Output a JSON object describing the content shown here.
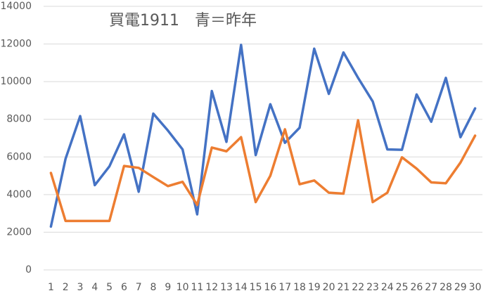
{
  "chart_data": {
    "type": "line",
    "title": "買電1911　青＝昨年",
    "categories": [
      "1",
      "2",
      "3",
      "4",
      "5",
      "6",
      "7",
      "8",
      "9",
      "10",
      "11",
      "12",
      "13",
      "14",
      "15",
      "16",
      "17",
      "18",
      "19",
      "20",
      "21",
      "22",
      "23",
      "24",
      "25",
      "26",
      "27",
      "28",
      "29",
      "30"
    ],
    "series": [
      {
        "color": "#4472c4",
        "values": [
          2300,
          5900,
          8170,
          4500,
          5500,
          7200,
          4150,
          8300,
          7400,
          6400,
          2950,
          9500,
          6800,
          11950,
          6100,
          8800,
          6750,
          7550,
          11750,
          9350,
          11550,
          10200,
          8950,
          6400,
          6380,
          9320,
          7870,
          10200,
          7050,
          8580
        ]
      },
      {
        "color": "#ed7d31",
        "values": [
          5150,
          2600,
          2600,
          2600,
          2600,
          5520,
          5420,
          4930,
          4450,
          4680,
          3450,
          6500,
          6300,
          7050,
          3600,
          5000,
          7470,
          4550,
          4750,
          4100,
          4050,
          7950,
          3600,
          4100,
          5980,
          5380,
          4650,
          4600,
          5700,
          7130
        ]
      }
    ],
    "ylim": [
      0,
      14000
    ],
    "yticks": [
      0,
      2000,
      4000,
      6000,
      8000,
      10000,
      12000,
      14000
    ],
    "grid": true
  }
}
